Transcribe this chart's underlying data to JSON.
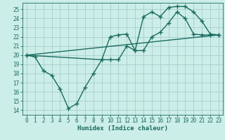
{
  "bg_color": "#cceee8",
  "grid_color": "#aacccc",
  "line_color": "#1a6b60",
  "line_width": 1.0,
  "marker": "+",
  "marker_size": 4,
  "marker_ew": 1.0,
  "xlabel": "Humidex (Indice chaleur)",
  "xlim": [
    -0.5,
    23.5
  ],
  "ylim": [
    13.5,
    25.7
  ],
  "xticks": [
    0,
    1,
    2,
    3,
    4,
    5,
    6,
    7,
    8,
    9,
    10,
    11,
    12,
    13,
    14,
    15,
    16,
    17,
    18,
    19,
    20,
    21,
    22,
    23
  ],
  "yticks": [
    14,
    15,
    16,
    17,
    18,
    19,
    20,
    21,
    22,
    23,
    24,
    25
  ],
  "line1_x": [
    0,
    1,
    2,
    3,
    4,
    5,
    6,
    7,
    8,
    9,
    10,
    11,
    12,
    13,
    14,
    15,
    16,
    17,
    18,
    19,
    20,
    21,
    22,
    23
  ],
  "line1_y": [
    20.0,
    19.8,
    18.3,
    17.8,
    16.3,
    14.2,
    14.7,
    16.5,
    18.0,
    19.5,
    19.5,
    19.5,
    21.0,
    20.5,
    24.2,
    24.7,
    24.2,
    25.2,
    25.3,
    25.3,
    24.7,
    23.7,
    22.3,
    22.2
  ],
  "line2_x": [
    0,
    9,
    10,
    11,
    12,
    13,
    14,
    15,
    16,
    17,
    18,
    19,
    20,
    21,
    22,
    23
  ],
  "line2_y": [
    20.0,
    19.5,
    22.0,
    22.2,
    22.3,
    20.5,
    20.5,
    22.0,
    22.5,
    23.5,
    24.7,
    24.0,
    22.3,
    22.2,
    22.2,
    22.2
  ],
  "line3_x": [
    0,
    23
  ],
  "line3_y": [
    20.0,
    22.2
  ],
  "tick_fontsize": 5.5,
  "label_fontsize": 6.5
}
